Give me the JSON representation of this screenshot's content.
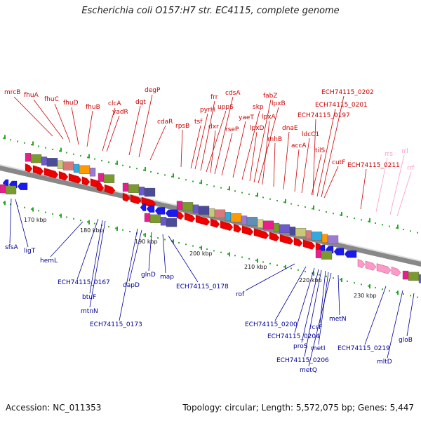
{
  "title": "Escherichia coli O157:H7 str. EC4115, complete genome",
  "footer": {
    "accession": "Accession: NC_011353",
    "summary": "Topology: circular; Length: 5,572,075 bp; Genes: 5,447"
  },
  "colors": {
    "forward_label": "#cc0000",
    "reverse_label": "#000099",
    "rna_label": "#ff99cc",
    "backbone": "#888888"
  },
  "scale_ticks": [
    "170 kbp",
    "180 kbp",
    "190 kbp",
    "200 kbp",
    "210 kbp",
    "220 kbp",
    "230 kbp"
  ],
  "top_labels": [
    "mrcB",
    "fhuA",
    "fhuC",
    "fhuD",
    "fhuB",
    "clcA",
    "yadR",
    "dgt",
    "degP",
    "cdaR",
    "rpsB",
    "tsf",
    "pyrH",
    "frr",
    "uppS",
    "dxr",
    "cdsA",
    "rseP",
    "yaeT",
    "skp",
    "lpxD",
    "fabZ",
    "lpxB",
    "lpxA",
    "rnhB",
    "dnaE",
    "accA",
    "ldcC1",
    "tilS",
    "ECH74115_0197",
    "ECH74115_0201",
    "ECH74115_0202",
    "cutF",
    "ECH74115_0211"
  ],
  "rna_labels": [
    "rrs",
    "rrl",
    "rrf"
  ],
  "bottom_labels": [
    "sfsA",
    "ligT",
    "hemL",
    "ECH74115_0167",
    "btuF",
    "mtnN",
    "ECH74115_0173",
    "dapD",
    "glnD",
    "map",
    "ECH74115_0178",
    "rof",
    "ECH74115_0200",
    "ECH74115_0204",
    "rcsF",
    "proS",
    "metI",
    "ECH74115_0206",
    "metQ",
    "metN",
    "ECH74115_0219",
    "mltD",
    "gloB"
  ]
}
